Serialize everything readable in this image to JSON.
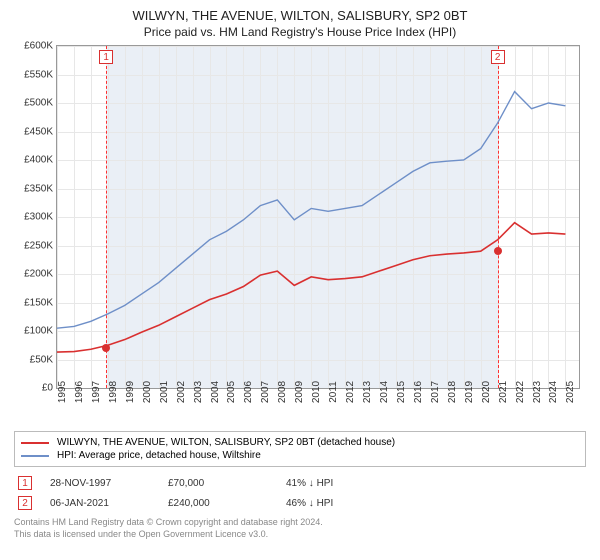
{
  "title": "WILWYN, THE AVENUE, WILTON, SALISBURY, SP2 0BT",
  "subtitle": "Price paid vs. HM Land Registry's House Price Index (HPI)",
  "chart": {
    "type": "line",
    "background_color": "#ffffff",
    "grid_color": "#e7e7e7",
    "shade_color": "#eaeff6",
    "shade_x_from": 1997.9,
    "shade_x_to": 2021.0,
    "xlim": [
      1995,
      2025.8
    ],
    "ylim": [
      0,
      600000
    ],
    "ytick_step": 50000,
    "yticks": [
      "£0",
      "£50K",
      "£100K",
      "£150K",
      "£200K",
      "£250K",
      "£300K",
      "£350K",
      "£400K",
      "£450K",
      "£500K",
      "£550K",
      "£600K"
    ],
    "xticks": [
      1995,
      1996,
      1997,
      1998,
      1999,
      2000,
      2001,
      2002,
      2003,
      2004,
      2005,
      2006,
      2007,
      2008,
      2009,
      2010,
      2011,
      2012,
      2013,
      2014,
      2015,
      2016,
      2017,
      2018,
      2019,
      2020,
      2021,
      2022,
      2023,
      2024,
      2025
    ],
    "label_fontsize": 10,
    "event_line_color": "#ff3030",
    "series": [
      {
        "name": "blue",
        "color": "#6e8fc8",
        "line_width": 1.4,
        "x": [
          1995,
          1996,
          1997,
          1998,
          1999,
          2000,
          2001,
          2002,
          2003,
          2004,
          2005,
          2006,
          2007,
          2008,
          2009,
          2010,
          2011,
          2012,
          2013,
          2014,
          2015,
          2016,
          2017,
          2018,
          2019,
          2020,
          2021,
          2022,
          2023,
          2024,
          2025
        ],
        "y": [
          105000,
          108000,
          117000,
          130000,
          145000,
          165000,
          185000,
          210000,
          235000,
          260000,
          275000,
          295000,
          320000,
          330000,
          295000,
          315000,
          310000,
          315000,
          320000,
          340000,
          360000,
          380000,
          395000,
          398000,
          400000,
          420000,
          465000,
          520000,
          490000,
          500000,
          495000
        ]
      },
      {
        "name": "red",
        "color": "#d93030",
        "line_width": 1.6,
        "x": [
          1995,
          1996,
          1997,
          1998,
          1999,
          2000,
          2001,
          2002,
          2003,
          2004,
          2005,
          2006,
          2007,
          2008,
          2009,
          2010,
          2011,
          2012,
          2013,
          2014,
          2015,
          2016,
          2017,
          2018,
          2019,
          2020,
          2021,
          2022,
          2023,
          2024,
          2025
        ],
        "y": [
          63000,
          64000,
          68000,
          75000,
          85000,
          98000,
          110000,
          125000,
          140000,
          155000,
          165000,
          178000,
          198000,
          205000,
          180000,
          195000,
          190000,
          192000,
          195000,
          205000,
          215000,
          225000,
          232000,
          235000,
          237000,
          240000,
          260000,
          290000,
          270000,
          272000,
          270000
        ]
      }
    ],
    "event_markers": [
      {
        "n": "1",
        "x": 1997.9,
        "dot_y": 70000,
        "dot_color": "#d93030"
      },
      {
        "n": "2",
        "x": 2021.0,
        "dot_y": 240000,
        "dot_color": "#d93030"
      }
    ]
  },
  "legend": {
    "items": [
      {
        "color": "#d93030",
        "label": "WILWYN, THE AVENUE, WILTON, SALISBURY, SP2 0BT (detached house)"
      },
      {
        "color": "#6e8fc8",
        "label": "HPI: Average price, detached house, Wiltshire"
      }
    ]
  },
  "events": [
    {
      "n": "1",
      "date": "28-NOV-1997",
      "price": "£70,000",
      "delta": "41% ↓ HPI"
    },
    {
      "n": "2",
      "date": "06-JAN-2021",
      "price": "£240,000",
      "delta": "46% ↓ HPI"
    }
  ],
  "footer_line1": "Contains HM Land Registry data © Crown copyright and database right 2024.",
  "footer_line2": "This data is licensed under the Open Government Licence v3.0."
}
